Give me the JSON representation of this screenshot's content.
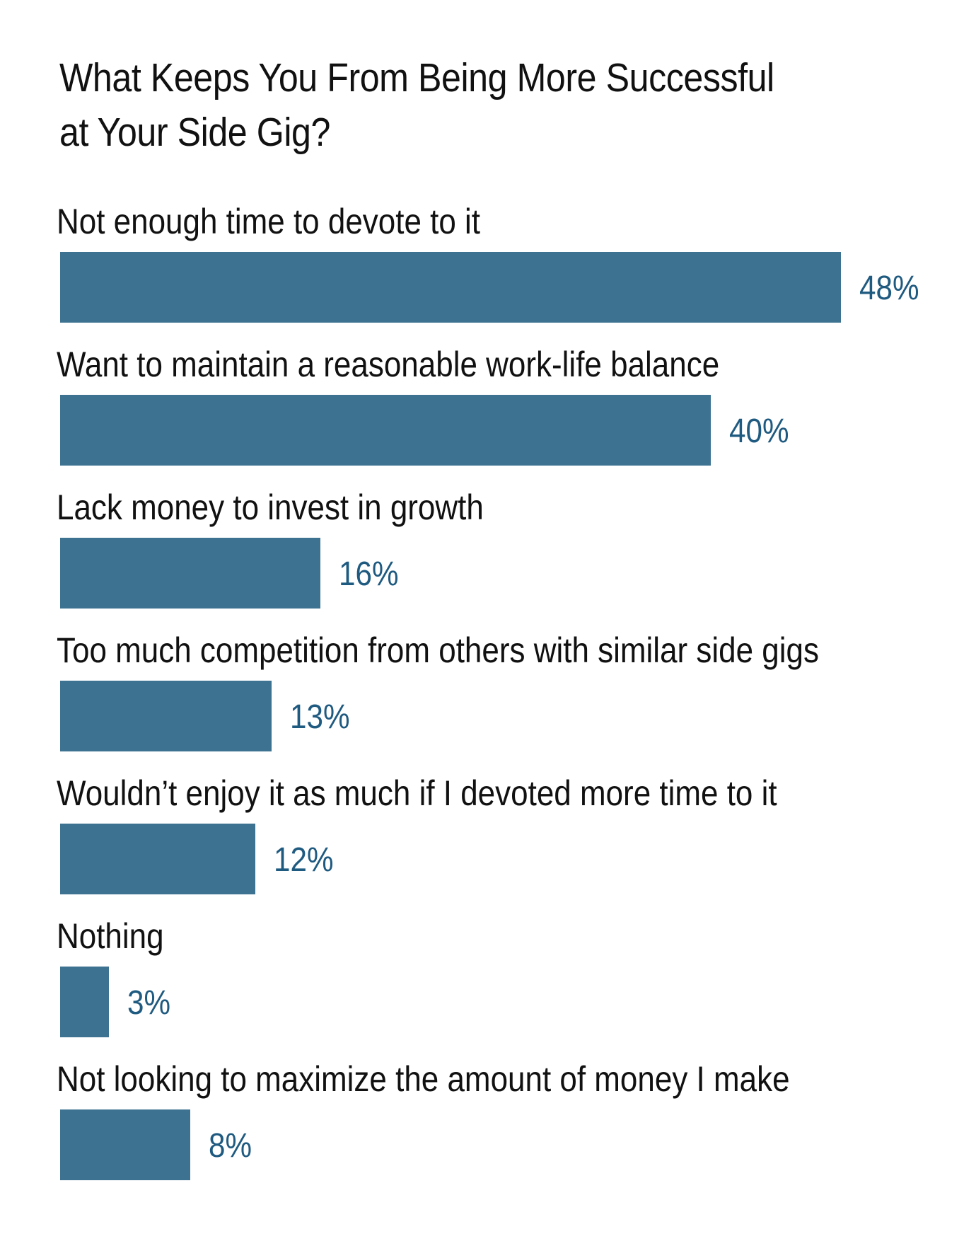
{
  "colors": {
    "bar": "#3d7391",
    "value_label": "#1f5a80",
    "text": "#111111"
  },
  "chart_data": {
    "type": "bar",
    "orientation": "horizontal",
    "title": "What Keeps You From Being More Successful at Your Side Gig?",
    "categories": [
      "Not enough time to devote to it",
      "Want to maintain a reasonable work-life balance",
      "Lack money to invest in growth",
      "Too much competition from others with similar side gigs",
      "Wouldn’t enjoy it as much if I devoted more time to it",
      "Nothing",
      "Not looking to maximize the amount of money I make"
    ],
    "values": [
      48,
      40,
      16,
      13,
      12,
      3,
      8
    ],
    "value_labels": [
      "48%",
      "40%",
      "16%",
      "13%",
      "12%",
      "3%",
      "8%"
    ],
    "unit": "%",
    "xlim": [
      0,
      48
    ],
    "grid": false,
    "legend": "none"
  }
}
